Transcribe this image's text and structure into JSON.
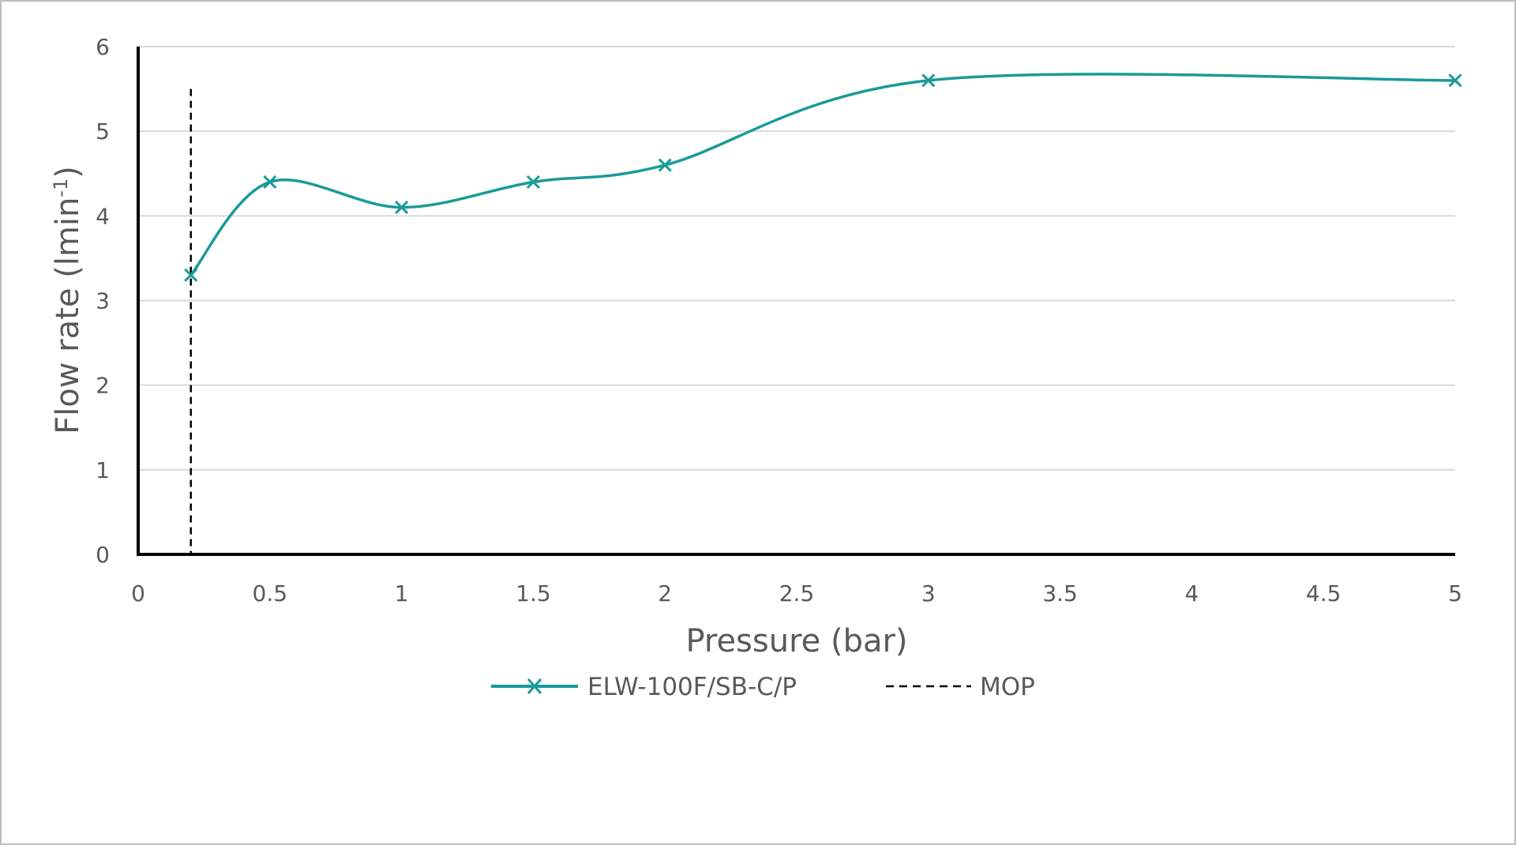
{
  "chart_data": {
    "type": "line",
    "xlabel": "Pressure (bar)",
    "ylabel_main": "Flow rate (lmin",
    "ylabel_sup": "-1",
    "ylabel_close": ")",
    "xlim": [
      0,
      5
    ],
    "ylim": [
      0,
      6
    ],
    "xticks": [
      "0",
      "0.5",
      "1",
      "1.5",
      "2",
      "2.5",
      "3",
      "3.5",
      "4",
      "4.5",
      "5"
    ],
    "yticks": [
      "0",
      "1",
      "2",
      "3",
      "4",
      "5",
      "6"
    ],
    "grid": true,
    "legend_position": "bottom",
    "series": [
      {
        "name": "ELW-100F/SB-C/P",
        "color": "#1a9a98",
        "marker": "x",
        "smooth": true,
        "x": [
          0.2,
          0.5,
          1,
          1.5,
          2,
          3,
          5
        ],
        "y": [
          3.3,
          4.4,
          4.1,
          4.4,
          4.6,
          5.6,
          5.6
        ]
      }
    ],
    "reference_lines": [
      {
        "name": "MOP",
        "orientation": "vertical",
        "style": "dashed",
        "color": "#000000",
        "x": 0.2,
        "y_range": [
          0,
          5.5
        ]
      }
    ]
  }
}
